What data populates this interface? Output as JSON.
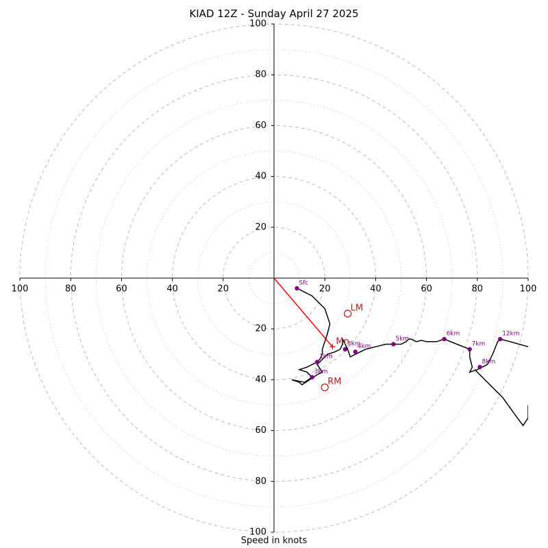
{
  "chart_data": {
    "type": "hodograph",
    "title": "KIAD 12Z - Sunday April 27 2025",
    "xlabel": "Speed in knots",
    "range": [
      -100,
      100
    ],
    "ring_major_step": 20,
    "ring_minor_step": 10,
    "x_ticks": [
      "100",
      "80",
      "60",
      "40",
      "20",
      "20",
      "40",
      "60",
      "80",
      "100"
    ],
    "x_tick_values": [
      -100,
      -80,
      -60,
      -40,
      -20,
      20,
      40,
      60,
      80,
      100
    ],
    "y_ticks_top": [
      "20",
      "40",
      "60",
      "80",
      "100"
    ],
    "y_ticks_bottom": [
      "20",
      "40",
      "60",
      "80",
      "100"
    ],
    "tick_values": [
      20,
      40,
      60,
      80,
      100
    ],
    "colors": {
      "ring": "#bbbbbb",
      "trace": "#000000",
      "marker": "#800080",
      "motion": "#b22222",
      "shear_vector": "#ff0000"
    },
    "trace": [
      [
        9,
        -4
      ],
      [
        15,
        -7
      ],
      [
        20,
        -12
      ],
      [
        22,
        -18
      ],
      [
        21,
        -22
      ],
      [
        20,
        -25
      ],
      [
        19,
        -28
      ],
      [
        19,
        -30
      ],
      [
        18,
        -32
      ],
      [
        17,
        -33
      ],
      [
        13,
        -35
      ],
      [
        10,
        -36
      ],
      [
        13,
        -37
      ],
      [
        15,
        -39
      ],
      [
        12,
        -41
      ],
      [
        7,
        -40
      ],
      [
        10,
        -41
      ],
      [
        11,
        -42
      ],
      [
        14,
        -40
      ],
      [
        17,
        -38
      ],
      [
        19,
        -37
      ],
      [
        17,
        -34
      ],
      [
        19,
        -32
      ],
      [
        21,
        -30
      ],
      [
        24,
        -29
      ],
      [
        26,
        -28
      ],
      [
        27,
        -26
      ],
      [
        27,
        -24
      ],
      [
        28,
        -26
      ],
      [
        29,
        -28
      ],
      [
        30,
        -31
      ],
      [
        32,
        -30
      ],
      [
        34,
        -29
      ],
      [
        36,
        -28
      ],
      [
        40,
        -27
      ],
      [
        44,
        -26
      ],
      [
        48,
        -26
      ],
      [
        50,
        -26
      ],
      [
        52,
        -25
      ],
      [
        53,
        -24
      ],
      [
        54,
        -24
      ],
      [
        56,
        -25
      ],
      [
        58,
        -24.5
      ],
      [
        60,
        -25
      ],
      [
        64,
        -25
      ],
      [
        67,
        -24
      ],
      [
        72,
        -26
      ],
      [
        77,
        -28
      ],
      [
        77,
        -31
      ],
      [
        78,
        -35
      ],
      [
        77,
        -37
      ],
      [
        80,
        -36
      ],
      [
        84,
        -34
      ],
      [
        86,
        -30
      ],
      [
        88,
        -25
      ],
      [
        89,
        -24
      ],
      [
        93,
        -25
      ],
      [
        100,
        -27
      ]
    ],
    "trace2": [
      [
        79,
        -36
      ],
      [
        84,
        -41
      ],
      [
        90,
        -47
      ],
      [
        95,
        -54
      ],
      [
        98,
        -58
      ],
      [
        100,
        -55
      ],
      [
        100,
        -50
      ]
    ],
    "heights": [
      {
        "label": "Sfc",
        "u": 9,
        "v": -4
      },
      {
        "label": "1km",
        "u": 17,
        "v": -33
      },
      {
        "label": "3km",
        "u": 28,
        "v": -28
      },
      {
        "label": "3km",
        "u": 15,
        "v": -39
      },
      {
        "label": "4km",
        "u": 32,
        "v": -29
      },
      {
        "label": "5km",
        "u": 47,
        "v": -26
      },
      {
        "label": "6km",
        "u": 67,
        "v": -24
      },
      {
        "label": "7km",
        "u": 77,
        "v": -28
      },
      {
        "label": "8km",
        "u": 81,
        "v": -35
      },
      {
        "label": "12km",
        "u": 89,
        "v": -24
      }
    ],
    "storm_motion": [
      {
        "label": "LM",
        "u": 29,
        "v": -14
      },
      {
        "label": "RM",
        "u": 20,
        "v": -43
      },
      {
        "label": "Mn",
        "u": 23,
        "v": -27
      }
    ],
    "shear_vector": {
      "from": [
        0,
        0
      ],
      "to": [
        23,
        -27
      ]
    }
  }
}
